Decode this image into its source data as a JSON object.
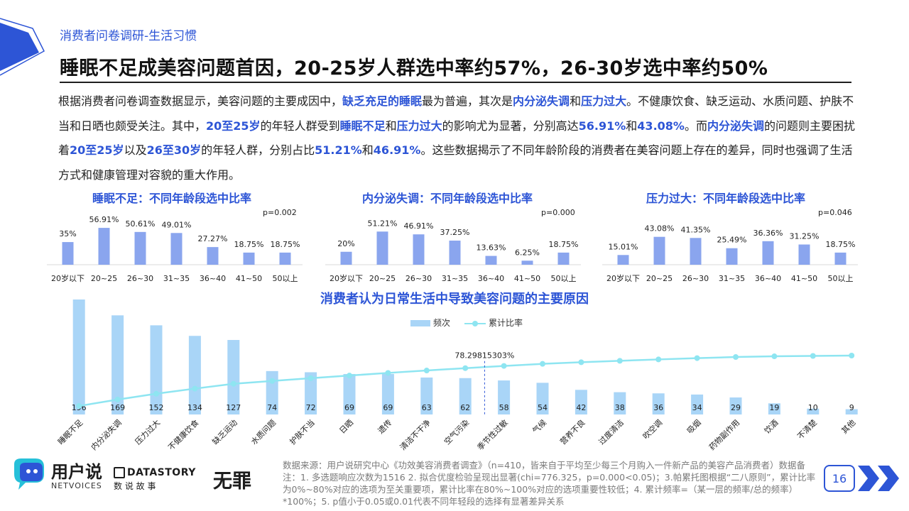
{
  "header": {
    "kicker": "消费者问卷调研-生活习惯",
    "headline": "睡眠不足成美容问题首因，20-25岁人群选中率约57%，26-30岁选中率约50%"
  },
  "intro_segments": [
    {
      "t": "根据消费者问卷调查数据显示，美容问题的主要成因中，",
      "hl": false
    },
    {
      "t": "缺乏充足的睡眠",
      "hl": true
    },
    {
      "t": "最为普遍，其次是",
      "hl": false
    },
    {
      "t": "内分泌失调",
      "hl": true
    },
    {
      "t": "和",
      "hl": false
    },
    {
      "t": "压力过大",
      "hl": true
    },
    {
      "t": "。不健康饮食、缺乏运动、水质问题、护肤不当和日晒也颇受关注。其中，",
      "hl": false
    },
    {
      "t": "20至25岁",
      "hl": true
    },
    {
      "t": "的年轻人群受到",
      "hl": false
    },
    {
      "t": "睡眠不足",
      "hl": true
    },
    {
      "t": "和",
      "hl": false
    },
    {
      "t": "压力过大",
      "hl": true
    },
    {
      "t": "的影响尤为显著，分别高达",
      "hl": false
    },
    {
      "t": "56.91%",
      "hl": true
    },
    {
      "t": "和",
      "hl": false
    },
    {
      "t": "43.08%",
      "hl": true
    },
    {
      "t": "。而",
      "hl": false
    },
    {
      "t": "内分泌失调",
      "hl": true
    },
    {
      "t": "的问题则主要困扰着",
      "hl": false
    },
    {
      "t": "20至25岁",
      "hl": true
    },
    {
      "t": "以及",
      "hl": false
    },
    {
      "t": "26至30岁",
      "hl": true
    },
    {
      "t": "的年轻人群，分别占比",
      "hl": false
    },
    {
      "t": "51.21%",
      "hl": true
    },
    {
      "t": "和",
      "hl": false
    },
    {
      "t": "46.91%",
      "hl": true
    },
    {
      "t": "。这些数据揭示了不同年龄阶段的消费者在美容问题上存在的差异，同时也强调了生活方式和健康管理对容貌的重大作用。",
      "hl": false
    }
  ],
  "chart_data": [
    {
      "type": "bar",
      "title": "睡眠不足：不同年龄段选中比率",
      "note": "p=0.002",
      "categories": [
        "20岁以下",
        "20~25",
        "26~30",
        "31~35",
        "36~40",
        "41~50",
        "50以上"
      ],
      "values": [
        35,
        56.91,
        50.61,
        49.01,
        27.27,
        18.75,
        18.75
      ],
      "labels": [
        "35%",
        "56.91%",
        "50.61%",
        "49.01%",
        "27.27%",
        "18.75%",
        "18.75%"
      ],
      "ylim": [
        0,
        100
      ]
    },
    {
      "type": "bar",
      "title": "内分泌失调：不同年龄段选中比率",
      "note": "p=0.000",
      "categories": [
        "20岁以下",
        "20~25",
        "26~30",
        "31~35",
        "36~40",
        "41~50",
        "50以上"
      ],
      "values": [
        20,
        51.21,
        46.91,
        37.25,
        13.63,
        6.25,
        18.75
      ],
      "labels": [
        "20%",
        "51.21%",
        "46.91%",
        "37.25%",
        "13.63%",
        "6.25%",
        "18.75%"
      ],
      "ylim": [
        0,
        100
      ]
    },
    {
      "type": "bar",
      "title": "压力过大：不同年龄段选中比率",
      "note": "p=0.046",
      "categories": [
        "20岁以下",
        "20~25",
        "26~30",
        "31~35",
        "36~40",
        "41~50",
        "50以上"
      ],
      "values": [
        15.01,
        43.08,
        41.35,
        25.49,
        36.36,
        31.25,
        18.75
      ],
      "labels": [
        "15.01%",
        "43.08%",
        "41.35%",
        "25.49%",
        "36.36%",
        "31.25%",
        "18.75%"
      ],
      "ylim": [
        0,
        100
      ]
    },
    {
      "type": "bar+line",
      "title": "消费者认为日常生活中导致美容问题的主要原因",
      "legend": [
        "频次",
        "累计比率"
      ],
      "categories": [
        "睡眠不足",
        "内分泌失调",
        "压力过大",
        "不健康饮食",
        "缺乏运动",
        "水质问题",
        "护肤不当",
        "日晒",
        "遗传",
        "清洁不干净",
        "空气污染",
        "季节性过敏",
        "气候",
        "营养不良",
        "过度清洁",
        "吹空调",
        "吸烟",
        "药物副作用",
        "饮酒",
        "不清楚",
        "其他"
      ],
      "values": [
        196,
        169,
        152,
        134,
        127,
        74,
        72,
        69,
        69,
        63,
        62,
        58,
        54,
        42,
        38,
        36,
        34,
        29,
        19,
        10,
        9
      ],
      "cumulative_annotation": "78.29815303%",
      "cumulative_annotation_index": 10
    }
  ],
  "brand": {
    "logo_cn": "用户说",
    "logo_en": "NETVOICES",
    "datastory_en": "DATASTORY",
    "datastory_cn": "数 说 故 事",
    "wuzui": "无罪"
  },
  "source": "数据来源：用户说研究中心《功效美容消费者调查》（n=410，皆来自于平均至少每三个月购入一件新产品的美容产品消费者）数据备注：1. 多选题响应次数为1516 2. 拟合优度检验呈现出显著(chi=776.325，p=0.000<0.05)；3.帕累托图根据“二八原则”，累计比率为0%~80%对应的选项为至关重要项，累计比率在80%~100%对应的选项重要性较低；4. 累计频率=（某一层的频率/总的频率）*100%；5. p值小于0.05或0.01代表不同年轻段的选择有显著差异关系",
  "page_number": "16",
  "colors": {
    "accent": "#2d55d6",
    "mini_bar": "#8aa5ee",
    "pareto_bar": "#a9d5f7",
    "cumulative_line": "#8ee5f1"
  }
}
